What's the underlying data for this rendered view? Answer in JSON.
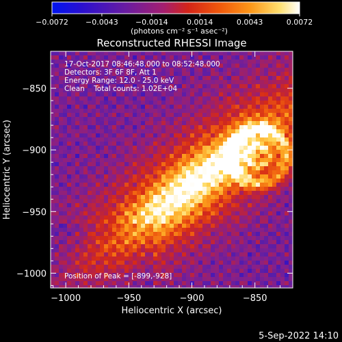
{
  "chart_data": {
    "type": "heatmap",
    "title": "Reconstructed RHESSI Image",
    "xlabel": "Heliocentric X (arcsec)",
    "ylabel": "Heliocentric Y (arcsec)",
    "xlim": [
      -1012,
      -820
    ],
    "ylim": [
      -1012,
      -820
    ],
    "x_ticks": [
      -1000,
      -950,
      -900,
      -850
    ],
    "y_ticks": [
      -1000,
      -950,
      -900,
      -850
    ],
    "x_tick_labels": [
      "−1000",
      "−950",
      "−900",
      "−850"
    ],
    "y_tick_labels": [
      "−1000",
      "−950",
      "−900",
      "−850"
    ],
    "colorbar": {
      "min": -0.0072,
      "max": 0.0072,
      "ticks": [
        -0.0072,
        -0.0043,
        -0.0014,
        0.0014,
        0.0043,
        0.0072
      ],
      "tick_labels": [
        "−0.0072",
        "−0.0043",
        "−0.0014",
        "0.0014",
        "0.0043",
        "0.0072"
      ],
      "units_label": "(photons cm⁻² s⁻¹ asec⁻²)",
      "colors": [
        "#0018e0",
        "#2c12c8",
        "#5a1ea8",
        "#86208a",
        "#b02050",
        "#d52a18",
        "#f06010",
        "#fc9c1c",
        "#ffd85a",
        "#ffffff"
      ]
    },
    "annotations": [
      "17-Oct-2017 08:46:48.000 to 08:52:48.000",
      "Detectors: 3F 6F 8F, Att 1",
      "Energy Range: 12.0 - 25.0 keV",
      "Clean    Total counts: 1.02E+04",
      "Position of Peak = [-899,-928]"
    ],
    "peak": {
      "x": -899,
      "y": -928
    },
    "timestamp": "5-Sep-2022 14:10"
  }
}
